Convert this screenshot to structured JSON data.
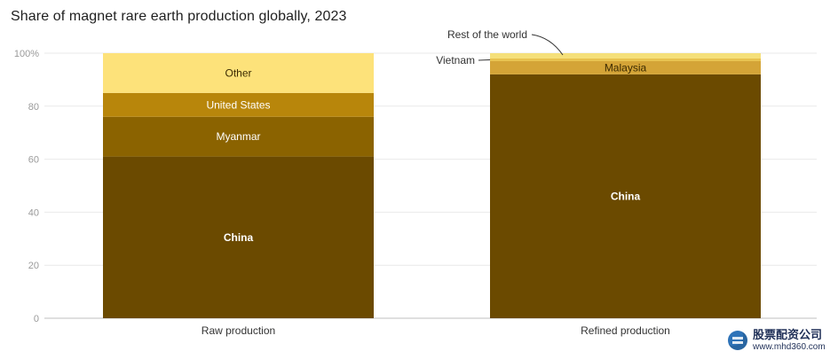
{
  "title": "Share of magnet rare earth production globally, 2023",
  "chart_data": {
    "type": "bar",
    "stacked": true,
    "categories": [
      "Raw production",
      "Refined production"
    ],
    "series": [
      {
        "name": "China",
        "values": [
          61,
          92
        ],
        "color": "#6b4a00"
      },
      {
        "name": "Myanmar",
        "values": [
          15,
          0
        ],
        "color": "#8b6300"
      },
      {
        "name": "United States",
        "values": [
          9,
          0
        ],
        "color": "#b8860b"
      },
      {
        "name": "Malaysia",
        "values": [
          0,
          5
        ],
        "color": "#d4a437"
      },
      {
        "name": "Vietnam",
        "values": [
          0,
          1
        ],
        "color": "#e8c24e"
      },
      {
        "name": "Rest of the world",
        "values": [
          0,
          2
        ],
        "color": "#f5e07a"
      },
      {
        "name": "Other",
        "values": [
          15,
          0
        ],
        "color": "#fde27a"
      }
    ],
    "ylim": [
      0,
      100
    ],
    "y_ticks": [
      0,
      20,
      40,
      60,
      80,
      100
    ],
    "y_tick_labels": [
      "0",
      "20",
      "40",
      "60",
      "80",
      "100%"
    ],
    "xlabel": "",
    "ylabel": "",
    "grid": true,
    "annotations": [
      "Rest of the world",
      "Vietnam"
    ]
  },
  "watermark": {
    "main": "股票配资公司",
    "sub": "www.mhd360.com"
  }
}
